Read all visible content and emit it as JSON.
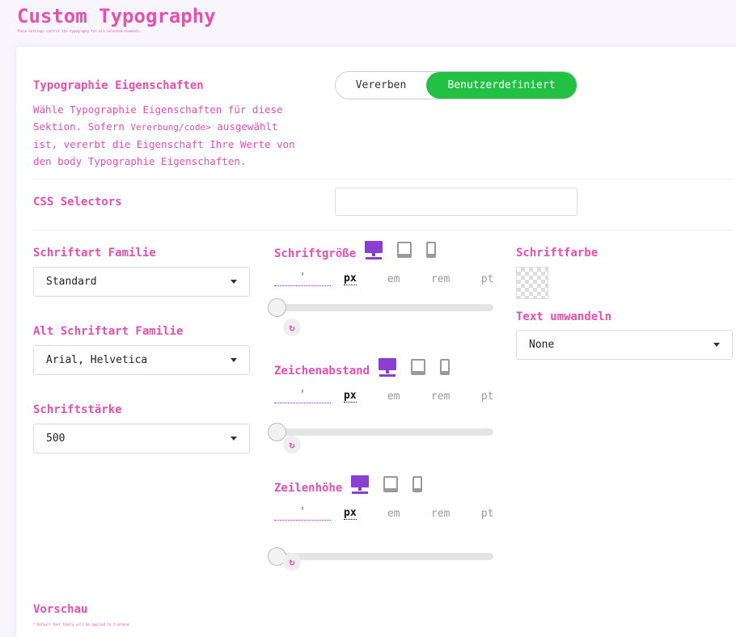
{
  "header": {
    "title": "Custom Typography",
    "subtitle": "These settings control the typography for all selected elements."
  },
  "props": {
    "label": "Typographie Eigenschaften",
    "desc1": "Wähle Typographie Eigenschaften für diese Sektion. Sofern ",
    "desc_code": "Vererbung/code>",
    "desc2": " ausgewählt ist, vererbt die Eigenschaft Ihre Werte von den body Typographie Eigenschaften.",
    "toggle": [
      "Vererben",
      "Benutzerdefiniert"
    ],
    "toggle_active": "Benutzerdefiniert"
  },
  "selectors": {
    "label": "CSS Selectors",
    "value": ""
  },
  "family": {
    "label": "Schriftart Familie",
    "value": "Standard"
  },
  "alt_family": {
    "label": "Alt Schriftart Familie",
    "value": "Arial, Helvetica"
  },
  "weight": {
    "label": "Schriftstärke",
    "value": "500"
  },
  "sliders": [
    {
      "label": "Schriftgröße",
      "value": "'",
      "units": [
        "px",
        "em",
        "rem",
        "pt"
      ],
      "active_unit": "px",
      "level": 0
    },
    {
      "label": "Zeichenabstand",
      "value": "'",
      "units": [
        "px",
        "em",
        "rem",
        "pt"
      ],
      "active_unit": "px",
      "level": 0
    },
    {
      "label": "Zeilenhöhe",
      "value": "'",
      "units": [
        "px",
        "em",
        "rem",
        "pt"
      ],
      "active_unit": "px",
      "level": 0
    }
  ],
  "color": {
    "label": "Schriftfarbe"
  },
  "transform": {
    "label": "Text umwandeln",
    "value": "None"
  },
  "preview": {
    "label": "Vorschau",
    "note": "* Default font family will be applied to frontend."
  },
  "colors": {
    "accent": "#e94fae",
    "active": "#22c143",
    "device_active": "#8a3fd1",
    "device_inactive": "#999999"
  }
}
